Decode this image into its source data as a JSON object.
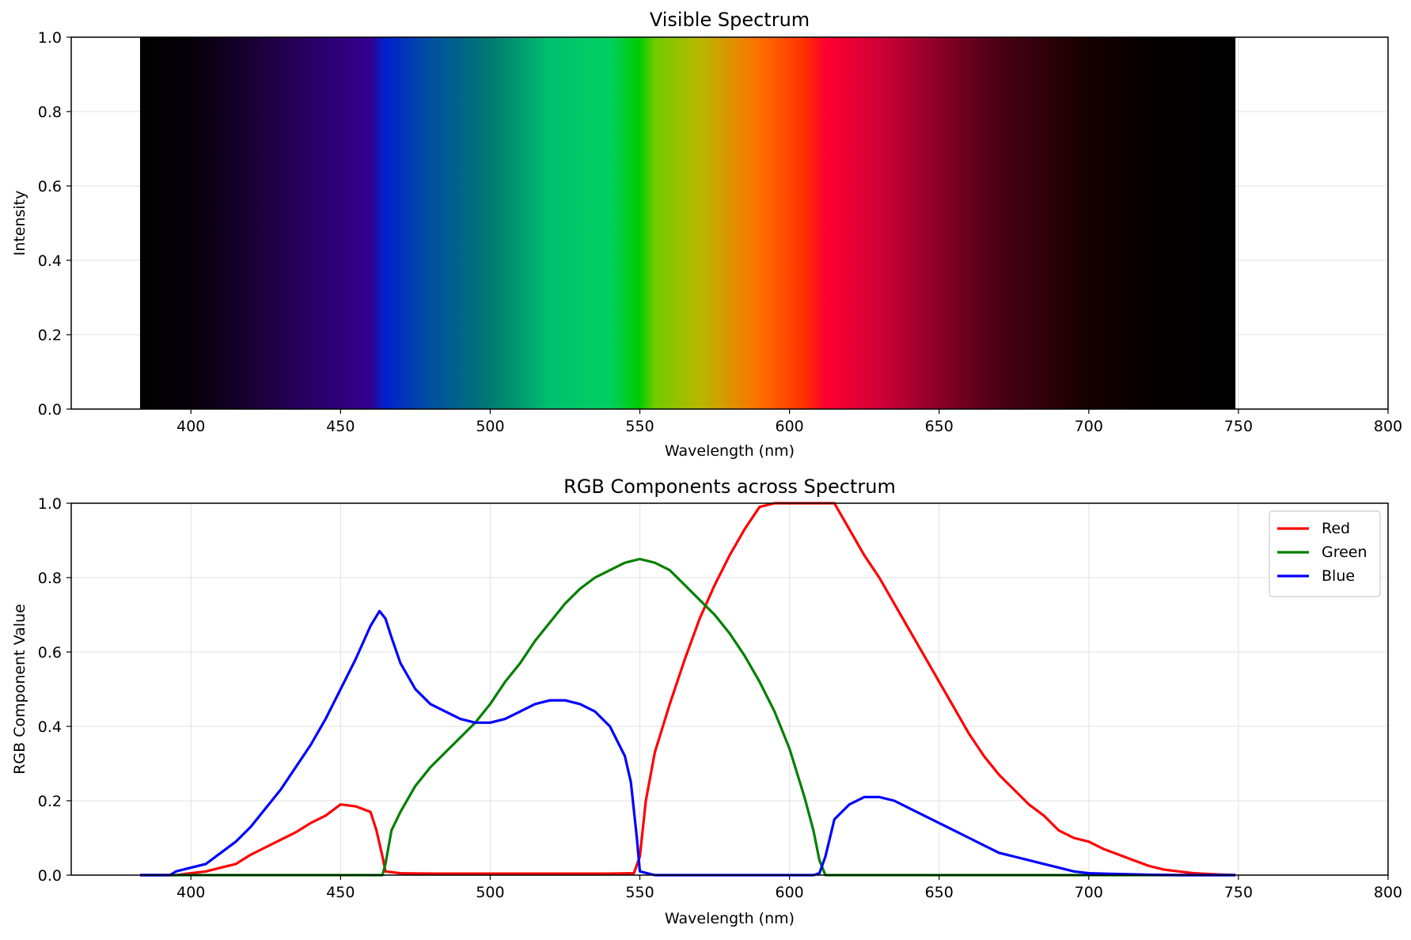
{
  "chart_data": [
    {
      "type": "area",
      "title": "Visible Spectrum",
      "xlabel": "Wavelength (nm)",
      "ylabel": "Intensity",
      "xlim": [
        360,
        800
      ],
      "ylim": [
        0,
        1
      ],
      "xticks": [
        400,
        450,
        500,
        550,
        600,
        650,
        700,
        750,
        800
      ],
      "yticks": [
        0.0,
        0.2,
        0.4,
        0.6,
        0.8,
        1.0
      ],
      "xtick_labels": [
        "400",
        "450",
        "500",
        "550",
        "600",
        "650",
        "700",
        "750",
        "800"
      ],
      "ytick_labels": [
        "0.0",
        "0.2",
        "0.4",
        "0.6",
        "0.8",
        "1.0"
      ],
      "grid": true,
      "band": {
        "x_start": 383,
        "x_end": 749,
        "intensity": 1.0
      },
      "color_stops": [
        {
          "x": 383,
          "color": "#000000"
        },
        {
          "x": 400,
          "color": "#050008"
        },
        {
          "x": 420,
          "color": "#1a0033"
        },
        {
          "x": 440,
          "color": "#280066"
        },
        {
          "x": 460,
          "color": "#33008f"
        },
        {
          "x": 465,
          "color": "#0022cc"
        },
        {
          "x": 480,
          "color": "#0050a0"
        },
        {
          "x": 500,
          "color": "#007a70"
        },
        {
          "x": 520,
          "color": "#00c070"
        },
        {
          "x": 540,
          "color": "#00d060"
        },
        {
          "x": 550,
          "color": "#00cc00"
        },
        {
          "x": 555,
          "color": "#70cc00"
        },
        {
          "x": 570,
          "color": "#b8b800"
        },
        {
          "x": 590,
          "color": "#ff7000"
        },
        {
          "x": 605,
          "color": "#ff3000"
        },
        {
          "x": 612,
          "color": "#ff0030"
        },
        {
          "x": 630,
          "color": "#d00038"
        },
        {
          "x": 650,
          "color": "#8a0028"
        },
        {
          "x": 670,
          "color": "#4a0015"
        },
        {
          "x": 700,
          "color": "#150000"
        },
        {
          "x": 720,
          "color": "#050000"
        },
        {
          "x": 749,
          "color": "#000000"
        }
      ]
    },
    {
      "type": "line",
      "title": "RGB Components across Spectrum",
      "xlabel": "Wavelength (nm)",
      "ylabel": "RGB Component Value",
      "xlim": [
        360,
        800
      ],
      "ylim": [
        0,
        1
      ],
      "xticks": [
        400,
        450,
        500,
        550,
        600,
        650,
        700,
        750,
        800
      ],
      "yticks": [
        0.0,
        0.2,
        0.4,
        0.6,
        0.8,
        1.0
      ],
      "xtick_labels": [
        "400",
        "450",
        "500",
        "550",
        "600",
        "650",
        "700",
        "750",
        "800"
      ],
      "ytick_labels": [
        "0.0",
        "0.2",
        "0.4",
        "0.6",
        "0.8",
        "1.0"
      ],
      "grid": true,
      "legend": "top-right",
      "series": [
        {
          "name": "Red",
          "color": "#ff0000",
          "points": [
            [
              383,
              0
            ],
            [
              395,
              0
            ],
            [
              400,
              0.005
            ],
            [
              405,
              0.01
            ],
            [
              410,
              0.02
            ],
            [
              415,
              0.03
            ],
            [
              420,
              0.055
            ],
            [
              425,
              0.075
            ],
            [
              430,
              0.095
            ],
            [
              435,
              0.115
            ],
            [
              440,
              0.14
            ],
            [
              445,
              0.16
            ],
            [
              450,
              0.19
            ],
            [
              455,
              0.185
            ],
            [
              460,
              0.17
            ],
            [
              462,
              0.12
            ],
            [
              464,
              0.05
            ],
            [
              465,
              0.01
            ],
            [
              470,
              0.005
            ],
            [
              480,
              0.004
            ],
            [
              490,
              0.004
            ],
            [
              500,
              0.004
            ],
            [
              510,
              0.004
            ],
            [
              520,
              0.004
            ],
            [
              530,
              0.004
            ],
            [
              540,
              0.004
            ],
            [
              548,
              0.005
            ],
            [
              550,
              0.05
            ],
            [
              552,
              0.2
            ],
            [
              555,
              0.33
            ],
            [
              560,
              0.46
            ],
            [
              565,
              0.58
            ],
            [
              570,
              0.69
            ],
            [
              575,
              0.78
            ],
            [
              580,
              0.86
            ],
            [
              585,
              0.93
            ],
            [
              590,
              0.99
            ],
            [
              595,
              1.0
            ],
            [
              600,
              1.0
            ],
            [
              605,
              1.0
            ],
            [
              610,
              1.0
            ],
            [
              615,
              1.0
            ],
            [
              620,
              0.93
            ],
            [
              625,
              0.86
            ],
            [
              630,
              0.8
            ],
            [
              635,
              0.73
            ],
            [
              640,
              0.66
            ],
            [
              645,
              0.59
            ],
            [
              650,
              0.52
            ],
            [
              655,
              0.45
            ],
            [
              660,
              0.38
            ],
            [
              665,
              0.32
            ],
            [
              670,
              0.27
            ],
            [
              675,
              0.23
            ],
            [
              680,
              0.19
            ],
            [
              685,
              0.16
            ],
            [
              690,
              0.12
            ],
            [
              695,
              0.1
            ],
            [
              700,
              0.09
            ],
            [
              705,
              0.07
            ],
            [
              710,
              0.055
            ],
            [
              715,
              0.04
            ],
            [
              720,
              0.025
            ],
            [
              725,
              0.015
            ],
            [
              730,
              0.01
            ],
            [
              735,
              0.005
            ],
            [
              740,
              0.003
            ],
            [
              745,
              0.001
            ],
            [
              749,
              0
            ]
          ]
        },
        {
          "name": "Green",
          "color": "#008000",
          "points": [
            [
              383,
              0
            ],
            [
              400,
              0
            ],
            [
              420,
              0
            ],
            [
              440,
              0
            ],
            [
              460,
              0
            ],
            [
              464,
              0
            ],
            [
              465,
              0.03
            ],
            [
              467,
              0.12
            ],
            [
              470,
              0.17
            ],
            [
              475,
              0.24
            ],
            [
              480,
              0.29
            ],
            [
              485,
              0.33
            ],
            [
              490,
              0.37
            ],
            [
              495,
              0.41
            ],
            [
              500,
              0.46
            ],
            [
              505,
              0.52
            ],
            [
              510,
              0.57
            ],
            [
              515,
              0.63
            ],
            [
              520,
              0.68
            ],
            [
              525,
              0.73
            ],
            [
              530,
              0.77
            ],
            [
              535,
              0.8
            ],
            [
              540,
              0.82
            ],
            [
              545,
              0.84
            ],
            [
              550,
              0.85
            ],
            [
              555,
              0.84
            ],
            [
              560,
              0.82
            ],
            [
              565,
              0.78
            ],
            [
              570,
              0.74
            ],
            [
              575,
              0.7
            ],
            [
              580,
              0.65
            ],
            [
              585,
              0.59
            ],
            [
              590,
              0.52
            ],
            [
              595,
              0.44
            ],
            [
              600,
              0.34
            ],
            [
              605,
              0.21
            ],
            [
              608,
              0.12
            ],
            [
              610,
              0.04
            ],
            [
              612,
              0
            ],
            [
              630,
              0
            ],
            [
              650,
              0
            ],
            [
              670,
              0
            ],
            [
              700,
              0
            ],
            [
              749,
              0
            ]
          ]
        },
        {
          "name": "Blue",
          "color": "#0000ff",
          "points": [
            [
              383,
              0
            ],
            [
              393,
              0
            ],
            [
              395,
              0.01
            ],
            [
              400,
              0.02
            ],
            [
              405,
              0.03
            ],
            [
              410,
              0.06
            ],
            [
              415,
              0.09
            ],
            [
              420,
              0.13
            ],
            [
              425,
              0.18
            ],
            [
              430,
              0.23
            ],
            [
              435,
              0.29
            ],
            [
              440,
              0.35
            ],
            [
              445,
              0.42
            ],
            [
              450,
              0.5
            ],
            [
              455,
              0.58
            ],
            [
              460,
              0.67
            ],
            [
              463,
              0.71
            ],
            [
              465,
              0.69
            ],
            [
              467,
              0.64
            ],
            [
              470,
              0.57
            ],
            [
              475,
              0.5
            ],
            [
              480,
              0.46
            ],
            [
              485,
              0.44
            ],
            [
              490,
              0.42
            ],
            [
              495,
              0.41
            ],
            [
              500,
              0.41
            ],
            [
              505,
              0.42
            ],
            [
              510,
              0.44
            ],
            [
              515,
              0.46
            ],
            [
              520,
              0.47
            ],
            [
              525,
              0.47
            ],
            [
              530,
              0.46
            ],
            [
              535,
              0.44
            ],
            [
              540,
              0.4
            ],
            [
              545,
              0.32
            ],
            [
              547,
              0.25
            ],
            [
              549,
              0.1
            ],
            [
              550,
              0.01
            ],
            [
              555,
              0
            ],
            [
              580,
              0
            ],
            [
              600,
              0
            ],
            [
              608,
              0
            ],
            [
              610,
              0.005
            ],
            [
              612,
              0.05
            ],
            [
              615,
              0.15
            ],
            [
              620,
              0.19
            ],
            [
              625,
              0.21
            ],
            [
              630,
              0.21
            ],
            [
              635,
              0.2
            ],
            [
              640,
              0.18
            ],
            [
              645,
              0.16
            ],
            [
              650,
              0.14
            ],
            [
              655,
              0.12
            ],
            [
              660,
              0.1
            ],
            [
              665,
              0.08
            ],
            [
              670,
              0.06
            ],
            [
              675,
              0.05
            ],
            [
              680,
              0.04
            ],
            [
              685,
              0.03
            ],
            [
              690,
              0.02
            ],
            [
              695,
              0.01
            ],
            [
              700,
              0.005
            ],
            [
              710,
              0.003
            ],
            [
              720,
              0.001
            ],
            [
              730,
              0
            ],
            [
              749,
              0
            ]
          ]
        }
      ]
    }
  ]
}
